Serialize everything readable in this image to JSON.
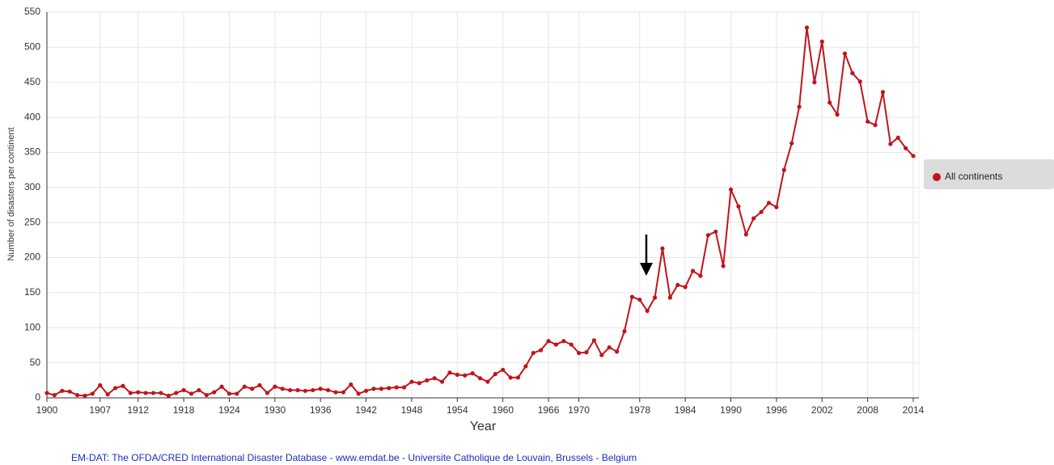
{
  "chart_data": {
    "type": "line",
    "x_label": "Year",
    "y_label": "Number of disasters per continent",
    "source": "EM-DAT: The OFDA/CRED International Disaster Database - www.emdat.be - Universite Catholique de Louvain, Brussels - Belgium",
    "x": [
      1900,
      1901,
      1902,
      1903,
      1904,
      1905,
      1906,
      1907,
      1908,
      1909,
      1910,
      1911,
      1912,
      1913,
      1914,
      1915,
      1916,
      1917,
      1918,
      1919,
      1920,
      1921,
      1922,
      1923,
      1924,
      1925,
      1926,
      1927,
      1928,
      1929,
      1930,
      1931,
      1932,
      1933,
      1934,
      1935,
      1936,
      1937,
      1938,
      1939,
      1940,
      1941,
      1942,
      1943,
      1944,
      1945,
      1946,
      1947,
      1948,
      1949,
      1950,
      1951,
      1952,
      1953,
      1954,
      1955,
      1956,
      1957,
      1958,
      1959,
      1960,
      1961,
      1962,
      1963,
      1964,
      1965,
      1966,
      1967,
      1968,
      1969,
      1970,
      1971,
      1972,
      1973,
      1974,
      1975,
      1976,
      1977,
      1978,
      1979,
      1980,
      1981,
      1982,
      1983,
      1984,
      1985,
      1986,
      1987,
      1988,
      1989,
      1990,
      1991,
      1992,
      1993,
      1994,
      1995,
      1996,
      1997,
      1998,
      1999,
      2000,
      2001,
      2002,
      2003,
      2004,
      2005,
      2006,
      2007,
      2008,
      2009,
      2010,
      2011,
      2012,
      2013,
      2014
    ],
    "series": [
      {
        "name": "All continents",
        "color": "#c0141c",
        "values": [
          7,
          4,
          10,
          9,
          4,
          3,
          6,
          18,
          5,
          14,
          17,
          7,
          8,
          7,
          7,
          7,
          3,
          7,
          11,
          6,
          11,
          4,
          8,
          16,
          6,
          6,
          16,
          13,
          18,
          7,
          16,
          13,
          11,
          11,
          10,
          11,
          13,
          11,
          8,
          8,
          19,
          6,
          10,
          13,
          13,
          14,
          15,
          15,
          23,
          21,
          25,
          28,
          23,
          36,
          33,
          32,
          35,
          28,
          23,
          34,
          40,
          29,
          29,
          45,
          64,
          68,
          81,
          76,
          81,
          76,
          64,
          65,
          82,
          61,
          72,
          66,
          95,
          144,
          140,
          124,
          143,
          213,
          143,
          161,
          158,
          181,
          174,
          232,
          237,
          188,
          297,
          273,
          233,
          256,
          265,
          278,
          272,
          325,
          363,
          415,
          528,
          450,
          508,
          421,
          404,
          491,
          463,
          451,
          394,
          389,
          436,
          362,
          371,
          356,
          345
        ]
      }
    ],
    "xlim": [
      1900,
      2014
    ],
    "xticks": [
      1900,
      1907,
      1912,
      1918,
      1924,
      1930,
      1936,
      1942,
      1948,
      1954,
      1960,
      1966,
      1970,
      1978,
      1984,
      1990,
      1996,
      2002,
      2008,
      2014
    ],
    "ylim": [
      0,
      550
    ],
    "yticks": [
      0,
      50,
      100,
      150,
      200,
      250,
      300,
      350,
      400,
      450,
      500,
      550
    ],
    "grid": true,
    "legend": "right"
  }
}
